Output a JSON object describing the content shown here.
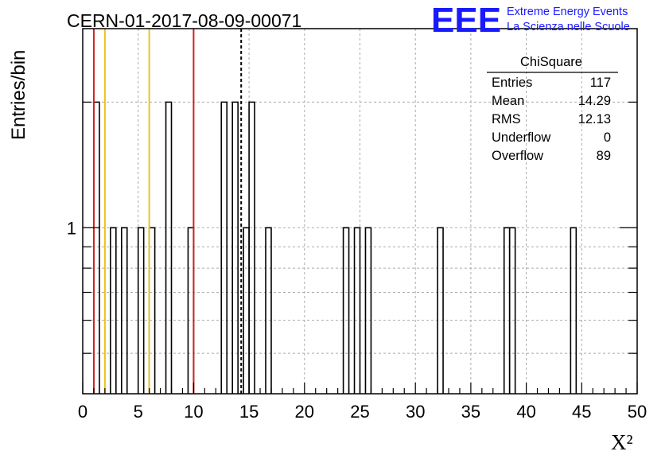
{
  "header": {
    "run_title": "CERN-01-2017-08-09-00071",
    "logo_text": "EEE",
    "logo_line1": "Extreme Energy Events",
    "logo_line2": "La Scienza nelle Scuole"
  },
  "stats_box": {
    "title": "ChiSquare",
    "rows": [
      {
        "label": "Entries",
        "value": "117"
      },
      {
        "label": "Mean",
        "value": "14.29"
      },
      {
        "label": "RMS",
        "value": "12.13"
      },
      {
        "label": "Underflow",
        "value": "0"
      },
      {
        "label": "Overflow",
        "value": "89"
      }
    ]
  },
  "colors": {
    "red_line": "#d42020",
    "yellow_line": "#f0c020",
    "logo_blue": "#1a1aff"
  },
  "chart_data": {
    "type": "bar",
    "title": "CERN-01-2017-08-09-00071",
    "xlabel": "X²",
    "ylabel": "Entries/bin",
    "xlim": [
      0,
      50
    ],
    "ylim": [
      0.4,
      3
    ],
    "y_scale": "log",
    "grid": true,
    "bin_width": 0.5,
    "x_ticks": [
      0,
      5,
      10,
      15,
      20,
      25,
      30,
      35,
      40,
      45,
      50
    ],
    "y_tick_labels": [
      {
        "value": 1,
        "label": "1"
      }
    ],
    "bins": [
      {
        "x": 1.0,
        "count": 2
      },
      {
        "x": 2.5,
        "count": 1
      },
      {
        "x": 3.5,
        "count": 1
      },
      {
        "x": 5.0,
        "count": 1
      },
      {
        "x": 6.0,
        "count": 1
      },
      {
        "x": 7.5,
        "count": 2
      },
      {
        "x": 9.5,
        "count": 1
      },
      {
        "x": 12.5,
        "count": 2
      },
      {
        "x": 13.5,
        "count": 2
      },
      {
        "x": 14.5,
        "count": 1
      },
      {
        "x": 15.0,
        "count": 2
      },
      {
        "x": 16.5,
        "count": 1
      },
      {
        "x": 23.5,
        "count": 1
      },
      {
        "x": 24.5,
        "count": 1
      },
      {
        "x": 25.5,
        "count": 1
      },
      {
        "x": 32.0,
        "count": 1
      },
      {
        "x": 38.0,
        "count": 1
      },
      {
        "x": 38.5,
        "count": 1
      },
      {
        "x": 44.0,
        "count": 1
      }
    ],
    "reference_lines": [
      {
        "x": 1.0,
        "color": "red"
      },
      {
        "x": 2.0,
        "color": "yellow"
      },
      {
        "x": 6.0,
        "color": "yellow"
      },
      {
        "x": 10.0,
        "color": "red"
      },
      {
        "x": 14.29,
        "color": "black",
        "style": "dashed"
      }
    ]
  }
}
